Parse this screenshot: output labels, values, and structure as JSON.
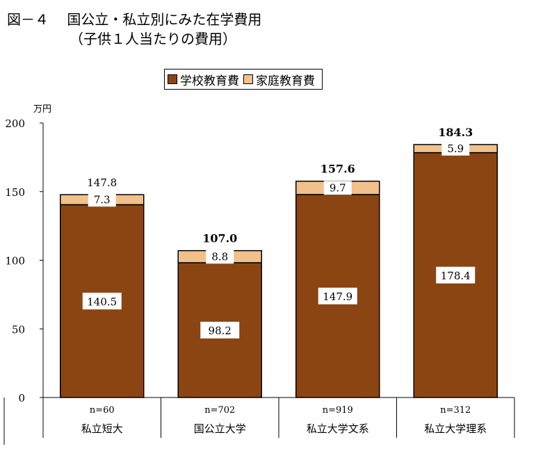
{
  "title": {
    "line1": "図－４　 国公立・私立別にみた在学費用",
    "line2": "（子供１人当たりの費用）"
  },
  "legend": {
    "school_label": "学校教育費",
    "home_label": "家庭教育費"
  },
  "colors": {
    "school": "#8b4513",
    "home": "#f2c08a"
  },
  "chart_data": {
    "type": "bar",
    "stacked": true,
    "ylabel": "万円",
    "ylim": [
      0,
      200
    ],
    "yticks": [
      0,
      50,
      100,
      150,
      200
    ],
    "categories": [
      "私立短大",
      "国公立大学",
      "私立大学文系",
      "私立大学理系"
    ],
    "sample_sizes": [
      "n=60",
      "n=702",
      "n=919",
      "n=312"
    ],
    "series": [
      {
        "name": "学校教育費",
        "values": [
          140.5,
          98.2,
          147.9,
          178.4
        ]
      },
      {
        "name": "家庭教育費",
        "values": [
          7.3,
          8.8,
          9.7,
          5.9
        ]
      }
    ],
    "totals": [
      147.8,
      107.0,
      157.6,
      184.3
    ],
    "total_labels": [
      "147.8",
      "107.0",
      "157.6",
      "184.3"
    ],
    "school_labels": [
      "140.5",
      "98.2",
      "147.9",
      "178.4"
    ],
    "home_labels": [
      "7.3",
      "8.8",
      "9.7",
      "5.9"
    ],
    "bold_totals": [
      false,
      true,
      true,
      true
    ]
  }
}
